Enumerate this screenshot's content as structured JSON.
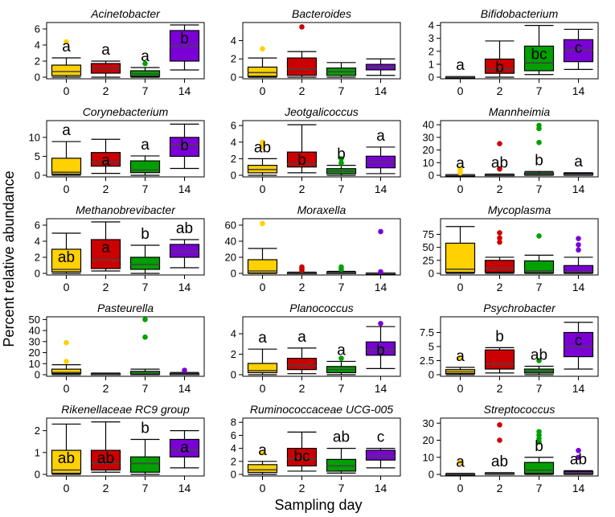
{
  "figure": {
    "xlabel": "Sampling day",
    "ylabel": "Percent relative abundance",
    "colors": {
      "0": "#FFD100",
      "2": "#CC0000",
      "7": "#00A000",
      "14": "#7B00D6"
    }
  },
  "chart_data": [
    {
      "type": "box",
      "title": "Acinetobacter",
      "categories": [
        "0",
        "2",
        "7",
        "14"
      ],
      "ylim": [
        0,
        6.6
      ],
      "yticks": [
        0,
        2,
        4,
        6
      ],
      "boxes": [
        {
          "whislo": 0,
          "q1": 0.2,
          "med": 0.7,
          "q3": 1.5,
          "whishi": 2.4,
          "outliers": [
            4.4
          ]
        },
        {
          "whislo": 0,
          "q1": 0.5,
          "med": 1.1,
          "q3": 1.7,
          "whishi": 2.0,
          "outliers": []
        },
        {
          "whislo": 0,
          "q1": 0.1,
          "med": 0.4,
          "q3": 0.8,
          "whishi": 1.2,
          "outliers": [
            1.7
          ]
        },
        {
          "whislo": 0.9,
          "q1": 2.0,
          "med": 3.9,
          "q3": 5.8,
          "whishi": 6.5,
          "outliers": []
        }
      ],
      "letters": [
        "a",
        "a",
        "a",
        "b"
      ]
    },
    {
      "type": "box",
      "title": "Bacteroides",
      "categories": [
        "0",
        "2",
        "7",
        "14"
      ],
      "ylim": [
        0,
        5.8
      ],
      "yticks": [
        0,
        2,
        4
      ],
      "boxes": [
        {
          "whislo": 0,
          "q1": 0.1,
          "med": 0.5,
          "q3": 1.1,
          "whishi": 2.1,
          "outliers": [
            3.1
          ]
        },
        {
          "whislo": 0,
          "q1": 0.2,
          "med": 0.9,
          "q3": 2.1,
          "whishi": 2.8,
          "outliers": [
            5.5
          ]
        },
        {
          "whislo": 0,
          "q1": 0.2,
          "med": 0.6,
          "q3": 1.0,
          "whishi": 1.6,
          "outliers": []
        },
        {
          "whislo": 0.2,
          "q1": 0.8,
          "med": 1.1,
          "q3": 1.4,
          "whishi": 2.0,
          "outliers": []
        }
      ],
      "letters": [
        "",
        "",
        "",
        ""
      ]
    },
    {
      "type": "box",
      "title": "Bifidobacterium",
      "categories": [
        "0",
        "2",
        "7",
        "14"
      ],
      "ylim": [
        0,
        4.1
      ],
      "yticks": [
        0,
        1,
        2,
        3,
        4
      ],
      "boxes": [
        {
          "whislo": 0,
          "q1": 0,
          "med": 0,
          "q3": 0.03,
          "whishi": 0.05,
          "outliers": []
        },
        {
          "whislo": 0,
          "q1": 0.3,
          "med": 0.6,
          "q3": 1.4,
          "whishi": 2.8,
          "outliers": []
        },
        {
          "whislo": 0.2,
          "q1": 0.5,
          "med": 1.1,
          "q3": 2.4,
          "whishi": 4.0,
          "outliers": []
        },
        {
          "whislo": 0.6,
          "q1": 1.2,
          "med": 2.1,
          "q3": 2.9,
          "whishi": 3.7,
          "outliers": []
        }
      ],
      "letters": [
        "a",
        "b",
        "bc",
        "c"
      ]
    },
    {
      "type": "box",
      "title": "Corynebacterium",
      "categories": [
        "0",
        "2",
        "7",
        "14"
      ],
      "ylim": [
        0,
        14
      ],
      "yticks": [
        0,
        5,
        10
      ],
      "boxes": [
        {
          "whislo": 0,
          "q1": 0.3,
          "med": 0.8,
          "q3": 4.5,
          "whishi": 8.9,
          "outliers": []
        },
        {
          "whislo": 0.5,
          "q1": 2.4,
          "med": 3.5,
          "q3": 6.0,
          "whishi": 9.5,
          "outliers": []
        },
        {
          "whislo": 0,
          "q1": 0.7,
          "med": 1.4,
          "q3": 3.8,
          "whishi": 5.1,
          "outliers": []
        },
        {
          "whislo": 1.8,
          "q1": 5.0,
          "med": 8.0,
          "q3": 10.0,
          "whishi": 13.5,
          "outliers": []
        }
      ],
      "letters": [
        "a",
        "a",
        "a",
        "b"
      ]
    },
    {
      "type": "box",
      "title": "Jeotgalicoccus",
      "categories": [
        "0",
        "2",
        "7",
        "14"
      ],
      "ylim": [
        0,
        6.4
      ],
      "yticks": [
        0,
        2,
        4,
        6
      ],
      "boxes": [
        {
          "whislo": 0,
          "q1": 0.3,
          "med": 0.7,
          "q3": 1.2,
          "whishi": 2.0,
          "outliers": [
            3.4,
            3.7,
            4.0
          ]
        },
        {
          "whislo": 0.3,
          "q1": 1.0,
          "med": 1.4,
          "q3": 2.8,
          "whishi": 6.1,
          "outliers": []
        },
        {
          "whislo": 0,
          "q1": 0.2,
          "med": 0.5,
          "q3": 0.8,
          "whishi": 1.2,
          "outliers": [
            1.5,
            2.0
          ]
        },
        {
          "whislo": 0.2,
          "q1": 0.9,
          "med": 1.6,
          "q3": 2.3,
          "whishi": 3.4,
          "outliers": []
        }
      ],
      "letters": [
        "ab",
        "b",
        "b",
        "a"
      ]
    },
    {
      "type": "box",
      "title": "Mannheimia",
      "categories": [
        "0",
        "2",
        "7",
        "14"
      ],
      "ylim": [
        0,
        42
      ],
      "yticks": [
        0,
        10,
        20,
        30,
        40
      ],
      "boxes": [
        {
          "whislo": 0,
          "q1": 0,
          "med": 0.1,
          "q3": 0.3,
          "whishi": 0.6,
          "outliers": [
            2.0,
            4.0,
            5.5
          ]
        },
        {
          "whislo": 0,
          "q1": 0,
          "med": 0.2,
          "q3": 0.6,
          "whishi": 1.0,
          "outliers": [
            5.0,
            25.0
          ]
        },
        {
          "whislo": 0,
          "q1": 0.3,
          "med": 0.8,
          "q3": 2.0,
          "whishi": 3.0,
          "outliers": [
            26.0,
            37.0,
            39.5
          ]
        },
        {
          "whislo": 0,
          "q1": 0.2,
          "med": 0.7,
          "q3": 1.6,
          "whishi": 2.0,
          "outliers": []
        }
      ],
      "letters": [
        "a",
        "ab",
        "b",
        "a"
      ]
    },
    {
      "type": "box",
      "title": "Methanobrevibacter",
      "categories": [
        "0",
        "2",
        "7",
        "14"
      ],
      "ylim": [
        0,
        6.6
      ],
      "yticks": [
        0,
        2,
        4,
        6
      ],
      "boxes": [
        {
          "whislo": 0,
          "q1": 0.2,
          "med": 0.5,
          "q3": 3.0,
          "whishi": 5.0,
          "outliers": []
        },
        {
          "whislo": 0.3,
          "q1": 0.6,
          "med": 1.7,
          "q3": 4.2,
          "whishi": 6.4,
          "outliers": []
        },
        {
          "whislo": 0,
          "q1": 0.5,
          "med": 1.1,
          "q3": 2.0,
          "whishi": 3.5,
          "outliers": []
        },
        {
          "whislo": 0.7,
          "q1": 2.0,
          "med": 2.7,
          "q3": 3.6,
          "whishi": 4.2,
          "outliers": []
        }
      ],
      "letters": [
        "ab",
        "a",
        "b",
        "ab"
      ]
    },
    {
      "type": "box",
      "title": "Moraxella",
      "categories": [
        "0",
        "2",
        "7",
        "14"
      ],
      "ylim": [
        0,
        66
      ],
      "yticks": [
        0,
        20,
        40,
        60
      ],
      "boxes": [
        {
          "whislo": 0,
          "q1": 0.5,
          "med": 3.0,
          "q3": 17.0,
          "whishi": 31.0,
          "outliers": [
            62.0
          ]
        },
        {
          "whislo": 0,
          "q1": 0,
          "med": 0.3,
          "q3": 1.0,
          "whishi": 1.5,
          "outliers": [
            4.0,
            6.0,
            8.0
          ]
        },
        {
          "whislo": 0,
          "q1": 0,
          "med": 0.3,
          "q3": 1.2,
          "whishi": 2.5,
          "outliers": [
            5.0,
            8.0
          ]
        },
        {
          "whislo": 0,
          "q1": 0,
          "med": 0.1,
          "q3": 0.3,
          "whishi": 0.6,
          "outliers": [
            2.0,
            52.0
          ]
        }
      ],
      "letters": [
        "",
        "",
        "",
        ""
      ]
    },
    {
      "type": "box",
      "title": "Mycoplasma",
      "categories": [
        "0",
        "2",
        "7",
        "14"
      ],
      "ylim": [
        0,
        102
      ],
      "yticks": [
        0,
        25,
        50,
        75
      ],
      "boxes": [
        {
          "whislo": 0,
          "q1": 2.0,
          "med": 8.0,
          "q3": 58.0,
          "whishi": 90.0,
          "outliers": []
        },
        {
          "whislo": 0,
          "q1": 2.0,
          "med": 10.0,
          "q3": 25.0,
          "whishi": 31.0,
          "outliers": [
            60.0,
            68.0,
            78.0
          ]
        },
        {
          "whislo": 0,
          "q1": 1.0,
          "med": 5.0,
          "q3": 24.0,
          "whishi": 35.0,
          "outliers": [
            72.0
          ]
        },
        {
          "whislo": 0,
          "q1": 1.0,
          "med": 3.0,
          "q3": 15.0,
          "whishi": 31.0,
          "outliers": [
            45.0,
            55.0,
            67.0
          ]
        }
      ],
      "letters": [
        "",
        "",
        "",
        ""
      ]
    },
    {
      "type": "box",
      "title": "Pasteurella",
      "categories": [
        "0",
        "2",
        "7",
        "14"
      ],
      "ylim": [
        0,
        51
      ],
      "yticks": [
        0,
        10,
        20,
        30,
        40,
        50
      ],
      "boxes": [
        {
          "whislo": 0,
          "q1": 1.0,
          "med": 2.0,
          "q3": 5.0,
          "whishi": 9.0,
          "outliers": [
            12.0,
            29.0
          ]
        },
        {
          "whislo": 0,
          "q1": 0,
          "med": 0.3,
          "q3": 1.0,
          "whishi": 1.5,
          "outliers": []
        },
        {
          "whislo": 0,
          "q1": 0.3,
          "med": 1.0,
          "q3": 3.0,
          "whishi": 5.0,
          "outliers": [
            34.0,
            50.0
          ]
        },
        {
          "whislo": 0,
          "q1": 0,
          "med": 0.3,
          "q3": 1.0,
          "whishi": 2.0,
          "outliers": [
            4.0
          ]
        }
      ],
      "letters": [
        "",
        "",
        "",
        ""
      ]
    },
    {
      "type": "box",
      "title": "Planococcus",
      "categories": [
        "0",
        "2",
        "7",
        "14"
      ],
      "ylim": [
        0,
        5.5
      ],
      "yticks": [
        0,
        2,
        4
      ],
      "boxes": [
        {
          "whislo": 0,
          "q1": 0.2,
          "med": 0.4,
          "q3": 1.1,
          "whishi": 2.5,
          "outliers": []
        },
        {
          "whislo": 0.1,
          "q1": 0.5,
          "med": 0.9,
          "q3": 1.6,
          "whishi": 2.6,
          "outliers": []
        },
        {
          "whislo": 0,
          "q1": 0.2,
          "med": 0.5,
          "q3": 0.8,
          "whishi": 1.3,
          "outliers": [
            1.6
          ]
        },
        {
          "whislo": 0.6,
          "q1": 1.9,
          "med": 2.4,
          "q3": 3.2,
          "whishi": 4.7,
          "outliers": [
            5.0
          ]
        }
      ],
      "letters": [
        "a",
        "a",
        "a",
        "b"
      ]
    },
    {
      "type": "box",
      "title": "Psychrobacter",
      "categories": [
        "0",
        "2",
        "7",
        "14"
      ],
      "ylim": [
        0,
        10.0
      ],
      "yticks": [
        0,
        2.5,
        5.0,
        7.5
      ],
      "boxes": [
        {
          "whislo": 0,
          "q1": 0.2,
          "med": 0.5,
          "q3": 0.9,
          "whishi": 1.3,
          "outliers": [
            3.0
          ]
        },
        {
          "whislo": 0.3,
          "q1": 1.0,
          "med": 1.9,
          "q3": 4.4,
          "whishi": 4.8,
          "outliers": []
        },
        {
          "whislo": 0,
          "q1": 0.3,
          "med": 0.6,
          "q3": 1.0,
          "whishi": 1.5,
          "outliers": [
            2.5
          ]
        },
        {
          "whislo": 1.0,
          "q1": 3.2,
          "med": 5.0,
          "q3": 7.5,
          "whishi": 9.3,
          "outliers": []
        }
      ],
      "letters": [
        "a",
        "b",
        "ab",
        "c"
      ]
    },
    {
      "type": "box",
      "title": "Rikenellaceae RC9 group",
      "categories": [
        "0",
        "2",
        "7",
        "14"
      ],
      "ylim": [
        0,
        2.5
      ],
      "yticks": [
        0,
        1,
        2
      ],
      "boxes": [
        {
          "whislo": 0,
          "q1": 0.05,
          "med": 0.2,
          "q3": 1.1,
          "whishi": 2.3,
          "outliers": []
        },
        {
          "whislo": 0.1,
          "q1": 0.2,
          "med": 0.5,
          "q3": 1.1,
          "whishi": 2.4,
          "outliers": []
        },
        {
          "whislo": 0,
          "q1": 0.1,
          "med": 0.5,
          "q3": 0.8,
          "whishi": 1.6,
          "outliers": []
        },
        {
          "whislo": 0.3,
          "q1": 0.8,
          "med": 1.1,
          "q3": 1.6,
          "whishi": 2.0,
          "outliers": []
        }
      ],
      "letters": [
        "ab",
        "ab",
        "b",
        "a"
      ]
    },
    {
      "type": "box",
      "title": "Ruminococcaceae UCG-005",
      "categories": [
        "0",
        "2",
        "7",
        "14"
      ],
      "ylim": [
        0,
        8.4
      ],
      "yticks": [
        0,
        2,
        4,
        6,
        8
      ],
      "boxes": [
        {
          "whislo": 0,
          "q1": 0.3,
          "med": 0.7,
          "q3": 1.5,
          "whishi": 2.0,
          "outliers": [
            3.3
          ]
        },
        {
          "whislo": 0.5,
          "q1": 1.3,
          "med": 2.4,
          "q3": 4.0,
          "whishi": 6.5,
          "outliers": []
        },
        {
          "whislo": 0.2,
          "q1": 0.5,
          "med": 1.3,
          "q3": 2.3,
          "whishi": 4.0,
          "outliers": []
        },
        {
          "whislo": 1.0,
          "q1": 2.2,
          "med": 2.8,
          "q3": 3.7,
          "whishi": 4.0,
          "outliers": []
        }
      ],
      "letters": [
        "a",
        "bc",
        "ab",
        "c"
      ]
    },
    {
      "type": "box",
      "title": "Streptococcus",
      "categories": [
        "0",
        "2",
        "7",
        "14"
      ],
      "ylim": [
        0,
        32
      ],
      "yticks": [
        0,
        10,
        20,
        30
      ],
      "boxes": [
        {
          "whislo": 0,
          "q1": 0,
          "med": 0.1,
          "q3": 0.3,
          "whishi": 0.6,
          "outliers": [
            7.0
          ]
        },
        {
          "whislo": 0,
          "q1": 0.1,
          "med": 0.4,
          "q3": 0.8,
          "whishi": 1.0,
          "outliers": [
            20.0,
            29.0
          ]
        },
        {
          "whislo": 0,
          "q1": 0.5,
          "med": 2.5,
          "q3": 7.0,
          "whishi": 10.0,
          "outliers": [
            19.0,
            21.0,
            23.0,
            25.0
          ]
        },
        {
          "whislo": 0,
          "q1": 0.2,
          "med": 0.8,
          "q3": 1.8,
          "whishi": 2.2,
          "outliers": [
            10.0,
            14.0
          ]
        }
      ],
      "letters": [
        "a",
        "ab",
        "b",
        "ab"
      ]
    }
  ]
}
